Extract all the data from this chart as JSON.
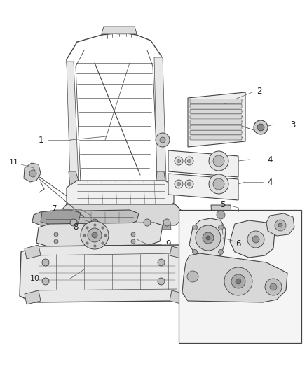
{
  "bg_color": "#ffffff",
  "line_color": "#444444",
  "line_width": 0.7,
  "label_fontsize": 8.5,
  "figsize": [
    4.38,
    5.33
  ],
  "dpi": 100
}
